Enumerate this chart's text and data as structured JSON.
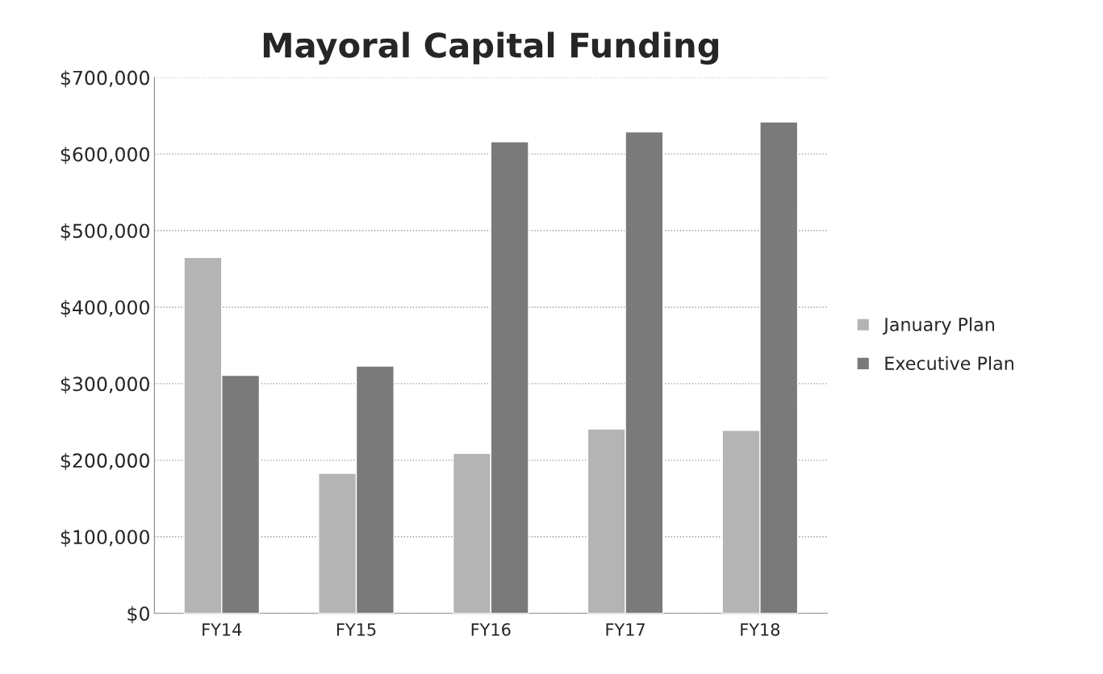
{
  "chart_data": {
    "type": "bar",
    "title": "Mayoral Capital Funding",
    "categories": [
      "FY14",
      "FY15",
      "FY16",
      "FY17",
      "FY18"
    ],
    "series": [
      {
        "name": "January Plan",
        "color": "#b4b4b4",
        "values": [
          465000,
          183000,
          209000,
          241000,
          239000
        ]
      },
      {
        "name": "Executive Plan",
        "color": "#7a7a7a",
        "values": [
          311000,
          323000,
          616000,
          629000,
          642000
        ]
      }
    ],
    "ylim": [
      0,
      700000
    ],
    "yticks": [
      {
        "value": 0,
        "label": "$0"
      },
      {
        "value": 100000,
        "label": "$100,000"
      },
      {
        "value": 200000,
        "label": "$200,000"
      },
      {
        "value": 300000,
        "label": "$300,000"
      },
      {
        "value": 400000,
        "label": "$400,000"
      },
      {
        "value": 500000,
        "label": "$500,000"
      },
      {
        "value": 600000,
        "label": "$600,000"
      },
      {
        "value": 700000,
        "label": "$700,000"
      }
    ],
    "grid": "y",
    "legend": "right"
  }
}
